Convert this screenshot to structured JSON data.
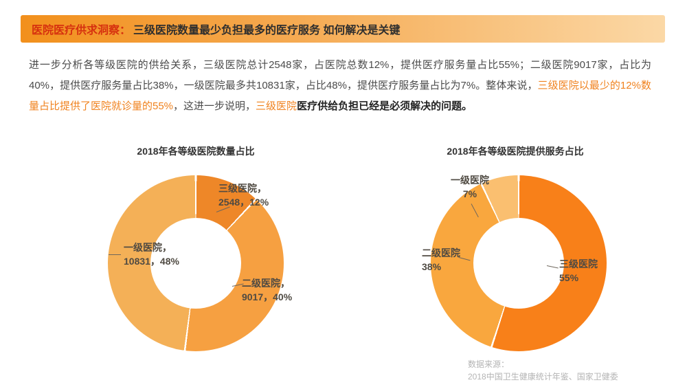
{
  "header": {
    "tag": "医院医疗供求洞察：",
    "title": "三级医院数量最少负担最多的医疗服务 如何解决是关键"
  },
  "paragraph": {
    "segments": [
      {
        "style": "normal",
        "text": "进一步分析各等级医院的供给关系，三级医院总计2548家，占医院总数12%，提供医疗服务量占比55%；二级医院9017家，占比为40%，提供医疗服务量占比38%，一级医院最多共10831家，占比48%，提供医疗服务量占比为7%。整体来说，"
      },
      {
        "style": "highlight",
        "text": "三级医院以最少的12%数量占比提供了医院就诊量的55%"
      },
      {
        "style": "normal",
        "text": "，这进一步说明，"
      },
      {
        "style": "highlight",
        "text": "三级医院"
      },
      {
        "style": "bold",
        "text": "医疗供给负担已经是必须解决的问题。"
      }
    ]
  },
  "chart_data": [
    {
      "type": "pie",
      "subtype": "donut",
      "title": "2018年各等级医院数量占比",
      "legend_position": "callouts",
      "slices": [
        {
          "name": "三级医院",
          "count": 2548,
          "pct": 12,
          "color": "#ee8728",
          "callout": [
            "三级医院，",
            "2548，12%"
          ]
        },
        {
          "name": "二级医院",
          "count": 9017,
          "pct": 40,
          "color": "#f6a041",
          "callout": [
            "二级医院，",
            "9017，40%"
          ]
        },
        {
          "name": "一级医院",
          "count": 10831,
          "pct": 48,
          "color": "#f4b057",
          "callout": [
            "一级医院，",
            "10831，48%"
          ]
        }
      ]
    },
    {
      "type": "pie",
      "subtype": "donut",
      "title": "2018年各等级医院提供服务占比",
      "legend_position": "callouts",
      "slices": [
        {
          "name": "三级医院",
          "pct": 55,
          "color": "#f88019",
          "callout": [
            "三级医院",
            "55%"
          ]
        },
        {
          "name": "二级医院",
          "pct": 38,
          "color": "#f9a73e",
          "callout": [
            "二级医院",
            "38%"
          ]
        },
        {
          "name": "一级医院",
          "pct": 7,
          "color": "#fabf70",
          "callout": [
            "一级医院",
            "7%"
          ]
        }
      ]
    }
  ],
  "source": {
    "line1": "数据来源：",
    "line2": "2018中国卫生健康统计年鉴、国家卫健委"
  }
}
